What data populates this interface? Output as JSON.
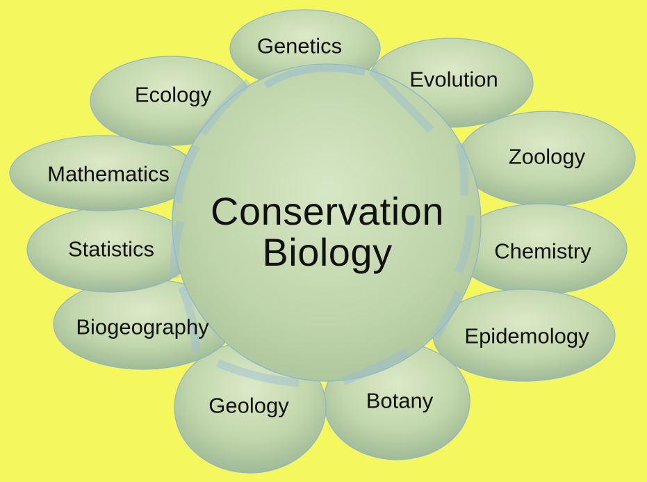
{
  "diagram": {
    "center": {
      "line1": "Conservation",
      "line2": "Biology"
    },
    "disciplines": [
      {
        "label": "Genetics"
      },
      {
        "label": "Evolution"
      },
      {
        "label": "Zoology"
      },
      {
        "label": "Chemistry"
      },
      {
        "label": "Epidemology"
      },
      {
        "label": "Botany"
      },
      {
        "label": "Geology"
      },
      {
        "label": "Biogeography"
      },
      {
        "label": "Statistics"
      },
      {
        "label": "Mathematics"
      },
      {
        "label": "Ecology"
      }
    ]
  },
  "colors": {
    "background": "#f5f75e",
    "petal_fill_top": "#d8e8c6",
    "petal_fill_bottom": "#9eb79c",
    "center_fill": "#c9ddb6",
    "outline": "#8fb4cf"
  }
}
